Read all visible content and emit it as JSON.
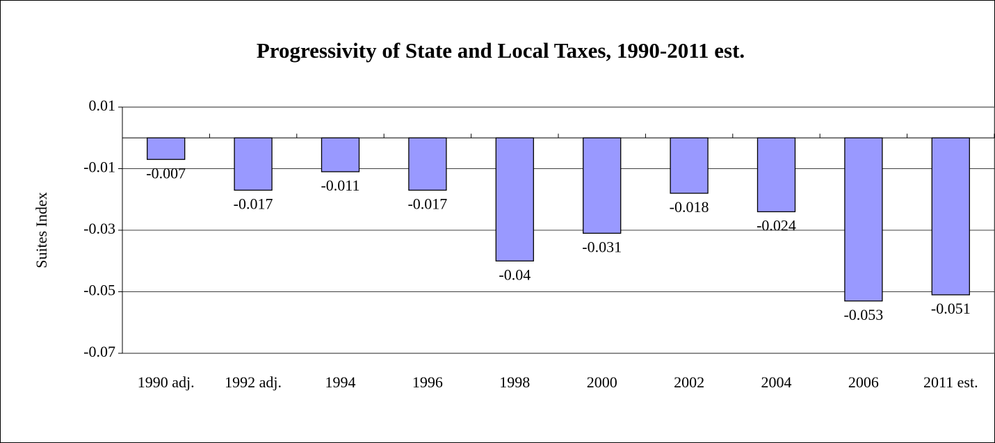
{
  "chart_data": {
    "type": "bar",
    "title": "Progressivity of State and Local Taxes, 1990-2011 est.",
    "y_label": "Suites Index",
    "categories": [
      "1990 adj.",
      "1992 adj.",
      "1994",
      "1996",
      "1998",
      "2000",
      "2002",
      "2004",
      "2006",
      "2011 est."
    ],
    "values": [
      -0.007,
      -0.017,
      -0.011,
      -0.017,
      -0.04,
      -0.031,
      -0.018,
      -0.024,
      -0.053,
      -0.051
    ],
    "color": "#9999ff",
    "ylim": [
      -0.07,
      0.01
    ],
    "yticks": [
      -0.07,
      -0.05,
      -0.03,
      -0.01,
      0.01
    ],
    "grid": true
  }
}
